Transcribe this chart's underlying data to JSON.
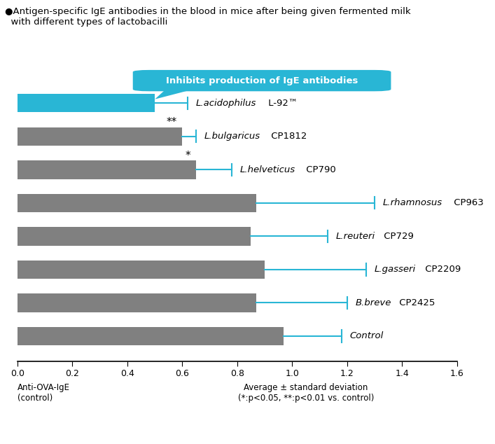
{
  "title_bullet": "●",
  "title_text": "Antigen-specific IgE antibodies in the blood in mice after being given fermented milk\n  with different types of lactobacilli",
  "bubble_text": "Inhibits production of IgE antibodies",
  "bubble_color": "#29b6d5",
  "categories": [
    "L.acidophilus L-92™",
    "L.bulgaricus CP1812",
    "L.helveticus CP790",
    "L.rhamnosus CP963",
    "L.reuteri CP729",
    "L.gasseri CP2209",
    "B.breve CP2425",
    "Control"
  ],
  "bar_values": [
    0.5,
    0.6,
    0.65,
    0.87,
    0.85,
    0.9,
    0.87,
    0.97
  ],
  "error_low": [
    0.5,
    0.6,
    0.65,
    0.87,
    0.85,
    0.9,
    0.87,
    0.97
  ],
  "error_high": [
    0.62,
    0.65,
    0.78,
    1.3,
    1.13,
    1.27,
    1.2,
    1.18
  ],
  "bar_colors": [
    "#29b6d5",
    "#808080",
    "#808080",
    "#808080",
    "#808080",
    "#808080",
    "#808080",
    "#808080"
  ],
  "significance": [
    "**",
    "**",
    "*",
    "",
    "",
    "",
    "",
    ""
  ],
  "xlim": [
    0.0,
    1.6
  ],
  "xticks": [
    0.0,
    0.2,
    0.4,
    0.6,
    0.8,
    1.0,
    1.2,
    1.4,
    1.6
  ],
  "xlabel_left": "Anti-OVA-IgE\n(control)",
  "xlabel_right": "Average ± standard deviation\n(*:p<0.05, **:p<0.01 vs. control)",
  "error_color": "#29b6d5",
  "label_italic": [
    "L.acidophilus",
    "L.bulgaricus",
    "L.helveticus",
    "L.rhamnosus",
    "L.reuteri",
    "L.gasseri",
    "B.breve",
    "Control"
  ],
  "label_normal": [
    " L-92™",
    " CP1812",
    " CP790",
    " CP963",
    " CP729",
    " CP2209",
    " CP2425",
    ""
  ]
}
